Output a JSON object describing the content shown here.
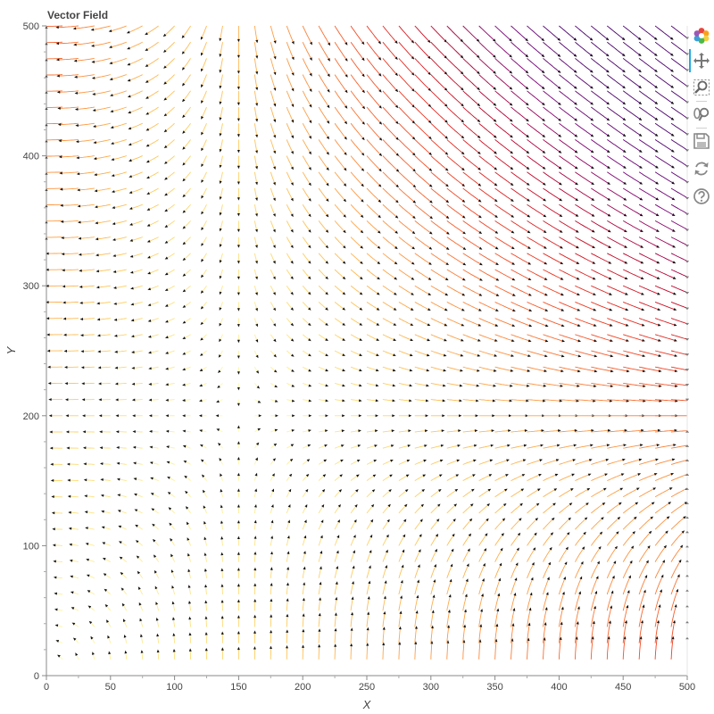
{
  "chart_data": {
    "type": "vector_field",
    "title": "Vector Field",
    "xlabel": "X",
    "ylabel": "Y",
    "xlim": [
      0,
      500
    ],
    "ylim": [
      0,
      500
    ],
    "x_ticks": [
      "0",
      "50",
      "100",
      "150",
      "200",
      "250",
      "300",
      "350",
      "400",
      "450",
      "500"
    ],
    "y_ticks": [
      "0",
      "100",
      "200",
      "300",
      "400",
      "500"
    ],
    "grid": false,
    "legend": "none",
    "grid_spacing": 12.5,
    "field": "streamlines of a saddle flow centred near (150, 200): flow comes down from the top-left and in from the right, and leaves toward the upper-right and the lower-left; colour runs from light yellow (slow) through orange to purple (fast)",
    "colormap": [
      "#ffffb2",
      "#fecc5c",
      "#fd8d3c",
      "#f03b20",
      "#bd0026",
      "#7a0177",
      "#49006a"
    ]
  },
  "toolbar": {
    "logo": "bokeh-logo-icon",
    "tools": [
      "pan-icon",
      "box-zoom-icon",
      "wheel-zoom-icon",
      "save-icon",
      "reset-icon",
      "help-icon"
    ]
  }
}
